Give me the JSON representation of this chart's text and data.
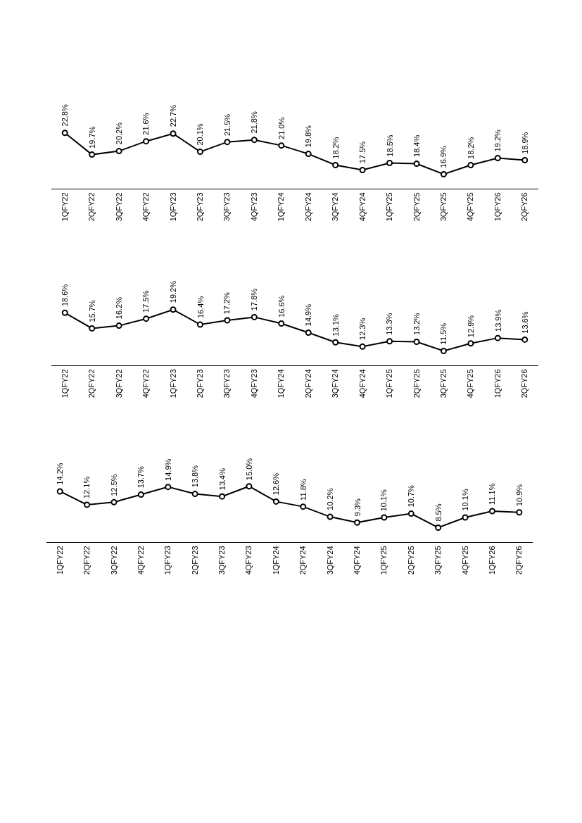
{
  "chart_data": [
    {
      "type": "line",
      "categories": [
        "1QFY22",
        "2QFY22",
        "3QFY22",
        "4QFY22",
        "1QFY23",
        "2QFY23",
        "3QFY23",
        "4QFY23",
        "1QFY24",
        "2QFY24",
        "3QFY24",
        "4QFY24",
        "1QFY25",
        "2QFY25",
        "3QFY25",
        "4QFY25",
        "1QFY26",
        "2QFY26"
      ],
      "series": [
        {
          "color": "#000000",
          "values": [
            22.8,
            19.7,
            20.2,
            21.6,
            22.7,
            20.1,
            21.5,
            21.8,
            21.0,
            19.8,
            18.2,
            17.5,
            18.5,
            18.4,
            16.9,
            18.2,
            19.2,
            18.9
          ],
          "value_labels": [
            "22.8%",
            "19.7%",
            "20.2%",
            "21.6%",
            "22.7%",
            "20.1%",
            "21.5%",
            "21.8%",
            "21.0%",
            "19.8%",
            "18.2%",
            "17.5%",
            "18.5%",
            "18.4%",
            "16.9%",
            "18.2%",
            "19.2%",
            "18.9%"
          ]
        }
      ],
      "marker": "circle",
      "line_style": "solid",
      "tick_labels": "x"
    },
    {
      "type": "line",
      "categories": [
        "1QFY22",
        "2QFY22",
        "3QFY22",
        "4QFY22",
        "1QFY23",
        "2QFY23",
        "3QFY23",
        "4QFY23",
        "1QFY24",
        "2QFY24",
        "3QFY24",
        "4QFY24",
        "1QFY25",
        "2QFY25",
        "3QFY25",
        "4QFY25",
        "1QFY26",
        "2QFY26"
      ],
      "series": [
        {
          "color": "#000000",
          "values": [
            18.6,
            15.7,
            16.2,
            17.5,
            19.2,
            16.4,
            17.2,
            17.8,
            16.6,
            14.9,
            13.1,
            12.3,
            13.3,
            13.2,
            11.5,
            12.9,
            13.9,
            13.6
          ],
          "value_labels": [
            "18.6%",
            "15.7%",
            "16.2%",
            "17.5%",
            "19.2%",
            "16.4%",
            "17.2%",
            "17.8%",
            "16.6%",
            "14.9%",
            "13.1%",
            "12.3%",
            "13.3%",
            "13.2%",
            "11.5%",
            "12.9%",
            "13.9%",
            "13.6%"
          ]
        }
      ],
      "marker": "circle",
      "line_style": "solid",
      "tick_labels": "x"
    },
    {
      "type": "line",
      "categories": [
        "1QFY22",
        "2QFY22",
        "3QFY22",
        "4QFY22",
        "1QFY23",
        "2QFY23",
        "3QFY23",
        "4QFY23",
        "1QFY24",
        "2QFY24",
        "3QFY24",
        "4QFY24",
        "1QFY25",
        "2QFY25",
        "3QFY25",
        "4QFY25",
        "1QFY26",
        "2QFY26"
      ],
      "series": [
        {
          "color": "#000000",
          "values": [
            14.2,
            12.1,
            12.5,
            13.7,
            14.9,
            13.8,
            13.4,
            15.0,
            12.6,
            11.8,
            10.2,
            9.3,
            10.1,
            10.7,
            8.5,
            10.1,
            11.1,
            10.9
          ],
          "value_labels": [
            "14.2%",
            "12.1%",
            "12.5%",
            "13.7%",
            "14.9%",
            "13.8%",
            "13.4%",
            "15.0%",
            "12.6%",
            "11.8%",
            "10.2%",
            "9.3%",
            "10.1%",
            "10.7%",
            "8.5%",
            "10.1%",
            "11.1%",
            "10.9%"
          ]
        }
      ],
      "marker": "circle",
      "line_style": "solid",
      "tick_labels": "x"
    }
  ]
}
